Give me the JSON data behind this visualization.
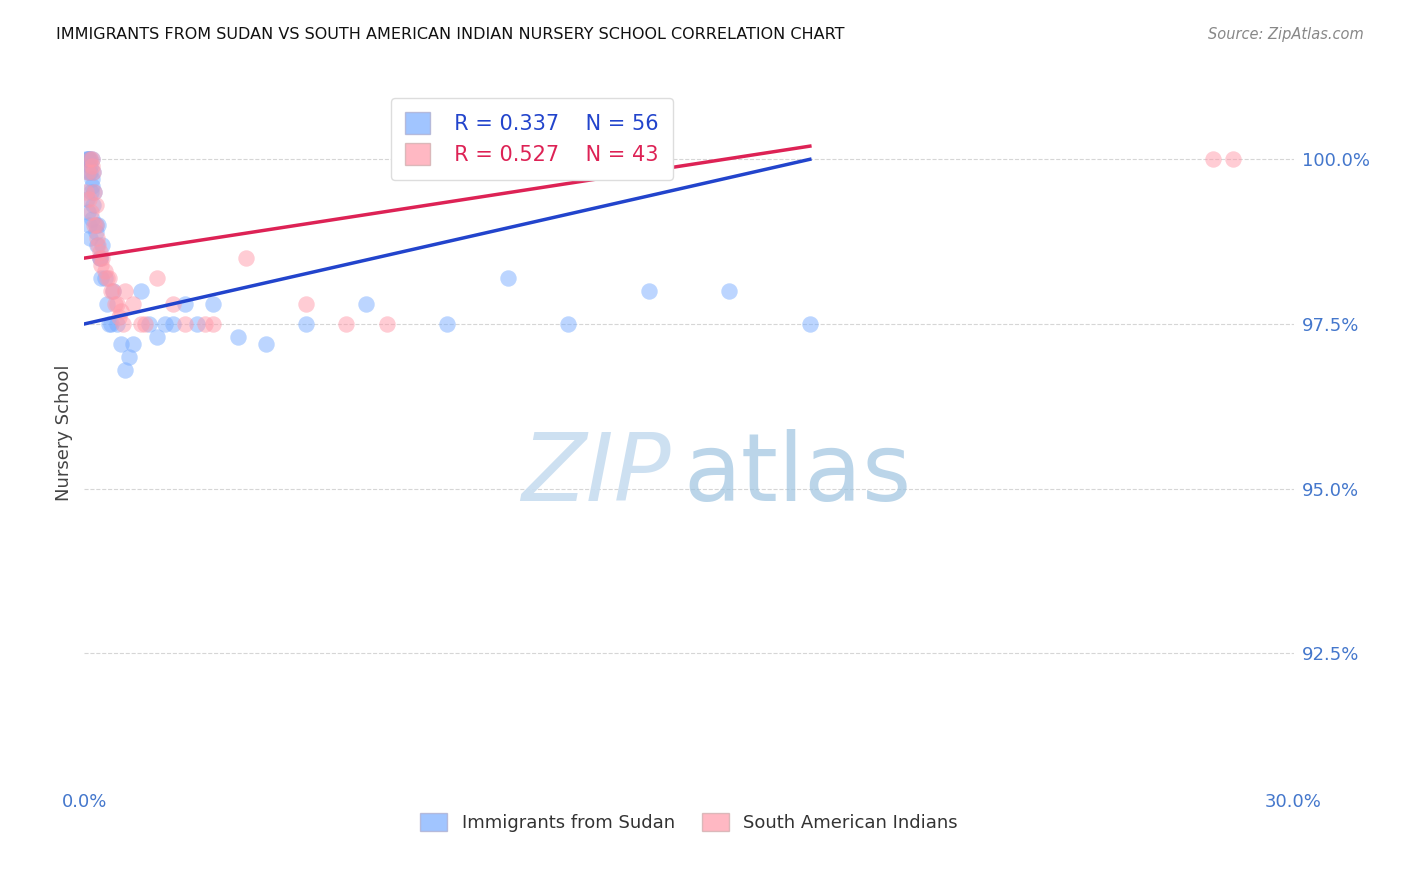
{
  "title": "IMMIGRANTS FROM SUDAN VS SOUTH AMERICAN INDIAN NURSERY SCHOOL CORRELATION CHART",
  "source": "Source: ZipAtlas.com",
  "ylabel": "Nursery School",
  "xlim": [
    0.0,
    30.0
  ],
  "ylim": [
    90.5,
    101.2
  ],
  "yticks": [
    92.5,
    95.0,
    97.5,
    100.0
  ],
  "ytick_labels": [
    "92.5%",
    "95.0%",
    "97.5%",
    "100.0%"
  ],
  "xticks": [
    0.0,
    5.0,
    10.0,
    15.0,
    20.0,
    25.0,
    30.0
  ],
  "xtick_labels": [
    "0.0%",
    "",
    "",
    "",
    "",
    "",
    "30.0%"
  ],
  "legend_r1": "R = 0.337",
  "legend_n1": "N = 56",
  "legend_r2": "R = 0.527",
  "legend_n2": "N = 43",
  "blue_color": "#7aadff",
  "pink_color": "#ff9aaa",
  "blue_line_color": "#2244cc",
  "pink_line_color": "#dd2255",
  "axis_label_color": "#4477cc",
  "background_color": "#ffffff",
  "grid_color": "#cccccc",
  "blue_x": [
    0.05,
    0.08,
    0.1,
    0.1,
    0.12,
    0.13,
    0.15,
    0.15,
    0.17,
    0.18,
    0.2,
    0.2,
    0.22,
    0.22,
    0.25,
    0.28,
    0.3,
    0.32,
    0.35,
    0.38,
    0.4,
    0.42,
    0.45,
    0.5,
    0.55,
    0.6,
    0.65,
    0.7,
    0.8,
    0.9,
    1.0,
    1.1,
    1.2,
    1.4,
    1.6,
    1.8,
    2.0,
    2.2,
    2.5,
    2.8,
    3.2,
    3.8,
    4.5,
    5.5,
    7.0,
    9.0,
    10.5,
    12.0,
    14.0,
    16.0,
    18.0,
    0.06,
    0.09,
    0.11,
    0.14,
    0.19
  ],
  "blue_y": [
    100.0,
    100.0,
    100.0,
    99.8,
    100.0,
    99.9,
    100.0,
    99.8,
    99.5,
    99.7,
    100.0,
    99.6,
    99.8,
    99.3,
    99.5,
    99.0,
    98.9,
    98.7,
    99.0,
    98.5,
    98.5,
    98.2,
    98.7,
    98.2,
    97.8,
    97.5,
    97.5,
    98.0,
    97.5,
    97.2,
    96.8,
    97.0,
    97.2,
    98.0,
    97.5,
    97.3,
    97.5,
    97.5,
    97.8,
    97.5,
    97.8,
    97.3,
    97.2,
    97.5,
    97.8,
    97.5,
    98.2,
    97.5,
    98.0,
    98.0,
    97.5,
    99.4,
    99.2,
    99.0,
    98.8,
    99.1
  ],
  "pink_x": [
    0.05,
    0.1,
    0.15,
    0.18,
    0.2,
    0.22,
    0.25,
    0.28,
    0.3,
    0.32,
    0.35,
    0.4,
    0.45,
    0.5,
    0.6,
    0.7,
    0.8,
    0.9,
    1.0,
    1.2,
    1.5,
    1.8,
    2.2,
    3.0,
    4.0,
    5.5,
    6.5,
    3.2,
    0.12,
    0.17,
    0.23,
    0.42,
    0.55,
    0.65,
    0.75,
    0.85,
    1.4,
    2.5,
    7.5,
    28.0,
    28.5,
    0.38,
    0.95
  ],
  "pink_y": [
    99.5,
    99.8,
    100.0,
    99.9,
    100.0,
    99.8,
    99.5,
    99.3,
    99.0,
    98.8,
    98.7,
    98.5,
    98.5,
    98.3,
    98.2,
    98.0,
    97.8,
    97.7,
    98.0,
    97.8,
    97.5,
    98.2,
    97.8,
    97.5,
    98.5,
    97.8,
    97.5,
    97.5,
    99.4,
    99.2,
    99.0,
    98.4,
    98.2,
    98.0,
    97.8,
    97.6,
    97.5,
    97.5,
    97.5,
    100.0,
    100.0,
    98.6,
    97.5
  ],
  "blue_line_x0": 0.0,
  "blue_line_y0": 97.5,
  "blue_line_x1": 18.0,
  "blue_line_y1": 100.0,
  "pink_line_x0": 0.0,
  "pink_line_y0": 98.5,
  "pink_line_x1": 18.0,
  "pink_line_y1": 100.2
}
